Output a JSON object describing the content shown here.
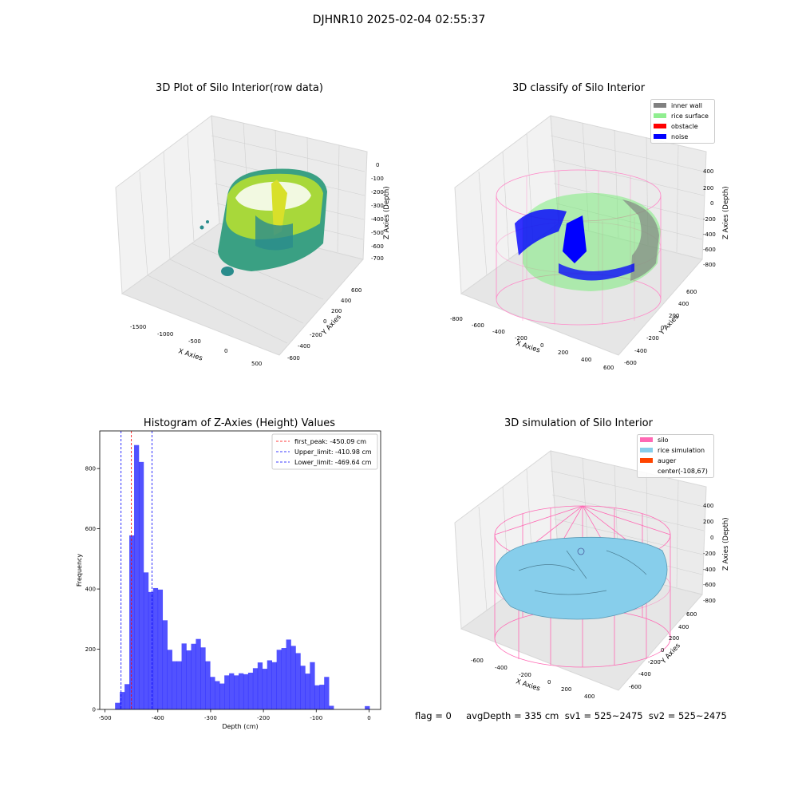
{
  "suptitle": "DJHNR10 2025-02-04 02:55:37",
  "footer": "flag = 0     avgDepth = 335 cm  sv1 = 525~2475  sv2 = 525~2475",
  "panels": {
    "raw": {
      "title": "3D Plot of Silo Interior(row data)",
      "xlabel": "X Axies",
      "ylabel": "Y Axies",
      "zlabel": "Z Axies (Depth)",
      "xticks": [
        "-1500",
        "-1000",
        "-500",
        "0",
        "500"
      ],
      "yticks": [
        "-600",
        "-400",
        "-200",
        "0",
        "200",
        "400",
        "600"
      ],
      "zticks": [
        "0",
        "-100",
        "-200",
        "-300",
        "-400",
        "-500",
        "-600",
        "-700"
      ]
    },
    "classify": {
      "title": "3D classify of Silo Interior",
      "xlabel": "X Axies",
      "ylabel": "Y Axies",
      "zlabel": "Z Axies (Depth)",
      "xticks": [
        "-800",
        "-600",
        "-400",
        "-200",
        "0",
        "200",
        "400",
        "600"
      ],
      "yticks": [
        "-600",
        "-400",
        "-200",
        "0",
        "200",
        "400",
        "600"
      ],
      "zticks": [
        "400",
        "200",
        "0",
        "-200",
        "-400",
        "-600",
        "-800"
      ],
      "legend": [
        {
          "label": "inner wall",
          "color": "#808080"
        },
        {
          "label": "rice surface",
          "color": "#90ee90"
        },
        {
          "label": "obstacle",
          "color": "#ff0000"
        },
        {
          "label": "noise",
          "color": "#0000ff"
        }
      ]
    },
    "simulation": {
      "title": "3D simulation of Silo Interior",
      "xlabel": "X Axies",
      "ylabel": "Y Axies",
      "zlabel": "Z Axies (Depth)",
      "xticks": [
        "-600",
        "-400",
        "-200",
        "0",
        "200",
        "400"
      ],
      "yticks": [
        "-600",
        "-400",
        "-200",
        "0",
        "200",
        "400",
        "600"
      ],
      "zticks": [
        "400",
        "200",
        "0",
        "-200",
        "-400",
        "-600",
        "-800"
      ],
      "legend": [
        {
          "label": "silo",
          "color": "#ff69b4"
        },
        {
          "label": "rice simulation",
          "color": "#87ceeb"
        },
        {
          "label": "auger",
          "color": "#ff4500"
        },
        {
          "label": "center(-108,67)",
          "color": ""
        }
      ]
    }
  },
  "chart_data": {
    "type": "bar",
    "title": "Histogram of Z-Axies (Height) Values",
    "xlabel": "Depth (cm)",
    "ylabel": "Frequency",
    "xlim": [
      -510,
      22
    ],
    "ylim": [
      0,
      925
    ],
    "xticks": [
      -500,
      -400,
      -300,
      -200,
      -100,
      0
    ],
    "yticks": [
      0,
      200,
      400,
      600,
      800
    ],
    "bar_color": "#0000ff",
    "bins": [
      [
        -481,
        -472,
        22
      ],
      [
        -472,
        -463,
        58
      ],
      [
        -463,
        -454,
        84
      ],
      [
        -454,
        -445,
        578
      ],
      [
        -445,
        -436,
        878
      ],
      [
        -436,
        -427,
        822
      ],
      [
        -427,
        -418,
        455
      ],
      [
        -418,
        -409,
        390
      ],
      [
        -409,
        -400,
        403
      ],
      [
        -400,
        -391,
        398
      ],
      [
        -391,
        -382,
        296
      ],
      [
        -382,
        -373,
        198
      ],
      [
        -373,
        -364,
        160
      ],
      [
        -364,
        -355,
        160
      ],
      [
        -355,
        -346,
        219
      ],
      [
        -346,
        -337,
        196
      ],
      [
        -337,
        -328,
        218
      ],
      [
        -328,
        -319,
        234
      ],
      [
        -319,
        -310,
        206
      ],
      [
        -310,
        -301,
        160
      ],
      [
        -301,
        -292,
        108
      ],
      [
        -292,
        -283,
        94
      ],
      [
        -283,
        -274,
        86
      ],
      [
        -274,
        -265,
        113
      ],
      [
        -265,
        -256,
        120
      ],
      [
        -256,
        -247,
        113
      ],
      [
        -247,
        -238,
        120
      ],
      [
        -238,
        -229,
        117
      ],
      [
        -229,
        -220,
        122
      ],
      [
        -220,
        -211,
        137
      ],
      [
        -211,
        -202,
        156
      ],
      [
        -202,
        -193,
        135
      ],
      [
        -193,
        -184,
        163
      ],
      [
        -184,
        -175,
        157
      ],
      [
        -175,
        -166,
        198
      ],
      [
        -166,
        -157,
        204
      ],
      [
        -157,
        -148,
        232
      ],
      [
        -148,
        -139,
        211
      ],
      [
        -139,
        -130,
        187
      ],
      [
        -130,
        -121,
        145
      ],
      [
        -121,
        -112,
        119
      ],
      [
        -112,
        -103,
        157
      ],
      [
        -103,
        -94,
        80
      ],
      [
        -94,
        -85,
        82
      ],
      [
        -85,
        -76,
        108
      ],
      [
        -76,
        -67,
        12
      ],
      [
        -8,
        1,
        11
      ]
    ],
    "lines": [
      {
        "label": "first_peak: -450.09 cm",
        "x": -450.09,
        "color": "#ff0000"
      },
      {
        "label": "Upper_limit: -410.98 cm",
        "x": -410.98,
        "color": "#0000ff"
      },
      {
        "label": "Lower_limit: -469.64 cm",
        "x": -469.64,
        "color": "#0000ff"
      }
    ],
    "legend_position": "upper right"
  }
}
